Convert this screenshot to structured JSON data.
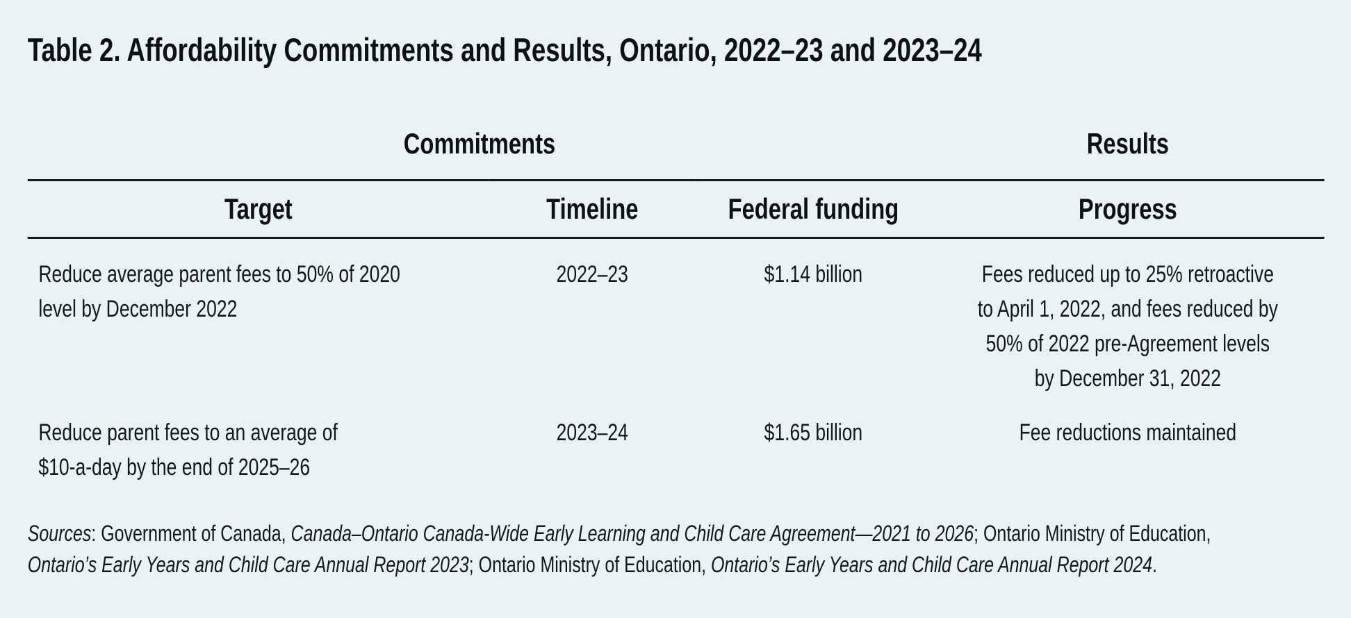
{
  "figure": {
    "background_color": "#e9f3f4",
    "text_color": "#10181a",
    "rule_color": "#161a1b"
  },
  "title": "Table 2. Affordability Commitments and Results, Ontario, 2022–23 and 2023–24",
  "table": {
    "group_headers": [
      {
        "label": "Commitments",
        "colspan": 3
      },
      {
        "label": "Results",
        "colspan": 1
      }
    ],
    "columns": [
      {
        "key": "target",
        "label": "Target",
        "align": "left"
      },
      {
        "key": "timeline",
        "label": "Timeline",
        "align": "center"
      },
      {
        "key": "federal_funding",
        "label": "Federal funding",
        "align": "center"
      },
      {
        "key": "progress",
        "label": "Progress",
        "align": "center"
      }
    ],
    "rows": [
      {
        "target": "Reduce average parent fees to 50% of 2020\nlevel by December 2022",
        "timeline": "2022–23",
        "federal_funding": "$1.14 billion",
        "progress": "Fees reduced up to 25% retroactive\nto April 1, 2022, and fees reduced by\n50% of 2022 pre-Agreement levels\nby December 31, 2022"
      },
      {
        "target": "Reduce parent fees to an average of\n$10-a-day by the end of 2025–26",
        "timeline": "2023–24",
        "federal_funding": "$1.65 billion",
        "progress": "Fee reductions maintained"
      }
    ]
  },
  "sources": {
    "lines": [
      {
        "segments": [
          {
            "text": "Sources",
            "italic": true
          },
          {
            "text": ": Government of Canada, ",
            "italic": false
          },
          {
            "text": "Canada–Ontario Canada-Wide Early Learning and Child Care Agreement—2021 to 2026",
            "italic": true
          },
          {
            "text": "; Ontario Ministry of Education,",
            "italic": false
          }
        ]
      },
      {
        "segments": [
          {
            "text": "Ontario’s Early Years and Child Care Annual Report 2023",
            "italic": true
          },
          {
            "text": "; Ontario Ministry of Education, ",
            "italic": false
          },
          {
            "text": "Ontario’s Early Years and Child Care Annual Report 2024",
            "italic": true
          },
          {
            "text": ".",
            "italic": false
          }
        ]
      }
    ]
  }
}
